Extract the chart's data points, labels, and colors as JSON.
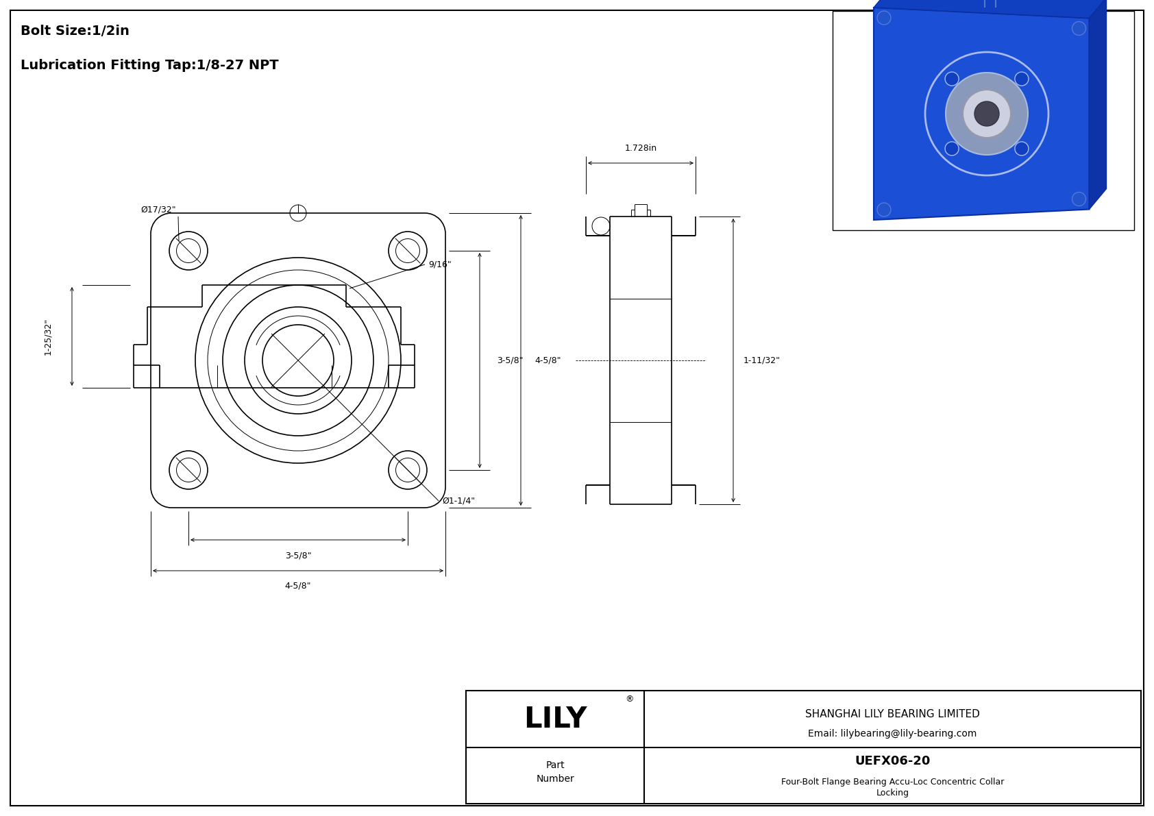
{
  "title_line1": "Bolt Size:1/2in",
  "title_line2": "Lubrication Fitting Tap:1/8-27 NPT",
  "part_number": "UEFX06-20",
  "part_description_line1": "Four-Bolt Flange Bearing Accu-Loc Concentric Collar",
  "part_description_line2": "Locking",
  "company_name": "SHANGHAI LILY BEARING LIMITED",
  "company_email": "Email: lilybearing@lily-bearing.com",
  "company_logo": "LILY",
  "dim_bolt_hole": "Ø17/32\"",
  "dim_3_5_8_v": "3-5/8\"",
  "dim_4_5_8_v": "4-5/8\"",
  "dim_3_5_8_h": "3-5/8\"",
  "dim_4_5_8_h": "4-5/8\"",
  "dim_bore": "Ø1-1/4\"",
  "dim_width_top": "1.728in",
  "dim_depth": "1-11/32\"",
  "dim_height": "1-25/32\"",
  "dim_9_16": "9/16\"",
  "bg_color": "#ffffff",
  "line_color": "#000000"
}
